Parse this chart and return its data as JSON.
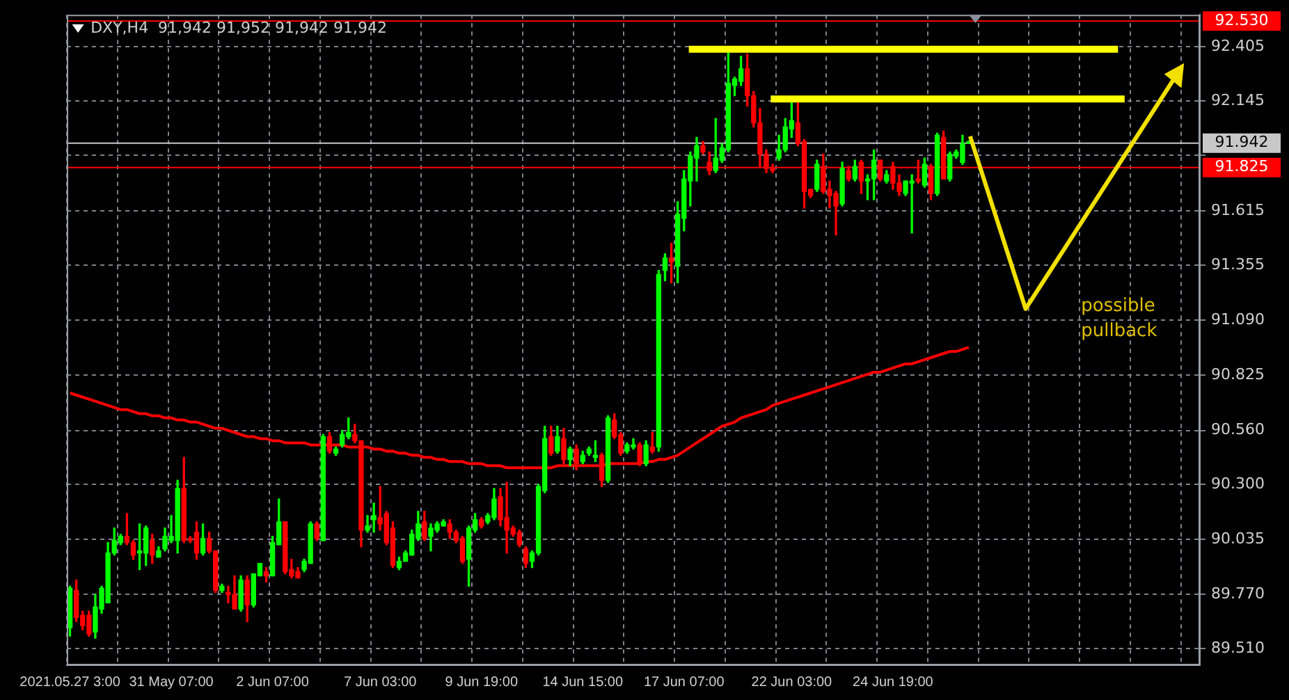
{
  "chart_data": {
    "type": "candlestick",
    "title": "DXY,H4  91,942 91,952 91,942 91,942",
    "categories": [
      "2021.05.27 3:00",
      null,
      null,
      null,
      null,
      null,
      null,
      null,
      null,
      null,
      null,
      null,
      null,
      null,
      null,
      null,
      "31 May 07:00",
      null,
      null,
      null,
      null,
      null,
      null,
      null,
      null,
      null,
      null,
      null,
      null,
      null,
      null,
      null,
      "2 Jun 07:00",
      null,
      null,
      null,
      null,
      null,
      null,
      null,
      null,
      null,
      null,
      null,
      null,
      null,
      null,
      null,
      null,
      "7 Jun 03:00",
      null,
      null,
      null,
      null,
      null,
      null,
      null,
      null,
      null,
      null,
      null,
      null,
      null,
      null,
      null,
      "9 Jun 19:00",
      null,
      null,
      null,
      null,
      null,
      null,
      null,
      null,
      null,
      null,
      null,
      null,
      null,
      null,
      null,
      "14 Jun 15:00",
      null,
      null,
      null,
      null,
      null,
      null,
      null,
      null,
      null,
      null,
      null,
      null,
      null,
      null,
      null,
      "17 Jun 07:00",
      null,
      null,
      null,
      null,
      null,
      null,
      null,
      null,
      null,
      null,
      null,
      null,
      null,
      null,
      null,
      null,
      "22 Jun 03:00",
      null,
      null,
      null,
      null,
      null,
      null,
      null,
      null,
      null,
      null,
      null,
      null,
      null,
      null,
      null,
      "24 Jun 19:00",
      null,
      null,
      null,
      null,
      null,
      null,
      null,
      null,
      null,
      null,
      null,
      null,
      null,
      null,
      null,
      null,
      null,
      null,
      null,
      null,
      null,
      null,
      null,
      null,
      null,
      null,
      null,
      null,
      null,
      null,
      null,
      null,
      null,
      null,
      null,
      null,
      null,
      null,
      null,
      null,
      null,
      null,
      null,
      null,
      null,
      null,
      null,
      null
    ],
    "ohlc": [
      [
        89.61,
        89.81,
        89.57,
        89.8
      ],
      [
        89.79,
        89.84,
        89.64,
        89.66
      ],
      [
        89.67,
        89.69,
        89.6,
        89.62
      ],
      [
        89.67,
        89.69,
        89.57,
        89.58
      ],
      [
        89.59,
        89.77,
        89.56,
        89.71
      ],
      [
        89.7,
        89.81,
        89.68,
        89.8
      ],
      [
        89.73,
        90.02,
        89.73,
        89.97
      ],
      [
        89.97,
        90.09,
        89.96,
        90.03
      ],
      [
        90.02,
        90.06,
        90.01,
        90.05
      ],
      [
        90.05,
        90.16,
        90.01,
        90.02
      ],
      [
        90.02,
        90.03,
        89.94,
        89.96
      ],
      [
        89.97,
        90.11,
        89.89,
        89.98
      ],
      [
        89.97,
        90.1,
        89.91,
        90.09
      ],
      [
        90.03,
        90.06,
        89.92,
        89.96
      ],
      [
        89.95,
        90.0,
        89.95,
        89.98
      ],
      [
        89.99,
        90.09,
        89.98,
        90.05
      ],
      [
        90.03,
        90.15,
        90.02,
        90.05
      ],
      [
        90.03,
        90.32,
        89.97,
        90.28
      ],
      [
        90.28,
        90.43,
        90.02,
        90.03
      ],
      [
        90.04,
        90.05,
        90.02,
        90.03
      ],
      [
        90.07,
        90.12,
        89.94,
        89.97
      ],
      [
        89.97,
        90.11,
        89.96,
        90.04
      ],
      [
        90.04,
        90.07,
        89.97,
        89.98
      ],
      [
        89.98,
        89.98,
        89.78,
        89.79
      ],
      [
        89.79,
        89.82,
        89.78,
        89.81
      ],
      [
        89.78,
        89.81,
        89.73,
        89.77
      ],
      [
        89.77,
        89.86,
        89.7,
        89.7
      ],
      [
        89.7,
        89.86,
        89.69,
        89.84
      ],
      [
        89.84,
        89.86,
        89.64,
        89.72
      ],
      [
        89.72,
        89.87,
        89.71,
        89.87
      ],
      [
        89.86,
        89.92,
        89.86,
        89.92
      ],
      [
        89.88,
        89.9,
        89.83,
        89.86
      ],
      [
        89.86,
        90.05,
        89.86,
        90.02
      ],
      [
        90.01,
        90.23,
        90.01,
        90.12
      ],
      [
        90.12,
        90.12,
        89.87,
        89.88
      ],
      [
        89.89,
        89.94,
        89.85,
        89.86
      ],
      [
        89.88,
        89.9,
        89.85,
        89.85
      ],
      [
        89.89,
        89.94,
        89.88,
        89.93
      ],
      [
        89.92,
        90.12,
        89.92,
        90.11
      ],
      [
        90.11,
        90.12,
        90.03,
        90.04
      ],
      [
        90.03,
        90.54,
        90.03,
        90.53
      ],
      [
        90.53,
        90.55,
        90.45,
        90.46
      ],
      [
        90.45,
        90.48,
        90.44,
        90.47
      ],
      [
        90.49,
        90.56,
        90.48,
        90.54
      ],
      [
        90.53,
        90.62,
        90.52,
        90.55
      ],
      [
        90.54,
        90.59,
        90.5,
        90.51
      ],
      [
        90.51,
        90.51,
        90.0,
        90.08
      ],
      [
        90.08,
        90.15,
        90.07,
        90.1
      ],
      [
        90.13,
        90.21,
        90.07,
        90.15
      ],
      [
        90.14,
        90.29,
        90.08,
        90.11
      ],
      [
        90.16,
        90.17,
        90.01,
        90.02
      ],
      [
        90.09,
        90.12,
        89.9,
        89.91
      ],
      [
        89.9,
        89.95,
        89.89,
        89.93
      ],
      [
        89.93,
        89.98,
        89.93,
        89.97
      ],
      [
        89.96,
        90.08,
        89.96,
        90.06
      ],
      [
        90.04,
        90.17,
        90.03,
        90.11
      ],
      [
        90.12,
        90.17,
        90.03,
        90.04
      ],
      [
        90.05,
        90.11,
        89.98,
        90.09
      ],
      [
        90.08,
        90.12,
        90.07,
        90.11
      ],
      [
        90.1,
        90.13,
        90.1,
        90.12
      ],
      [
        90.11,
        90.13,
        90.04,
        90.07
      ],
      [
        90.07,
        90.08,
        90.02,
        90.03
      ],
      [
        90.04,
        90.05,
        89.92,
        89.93
      ],
      [
        89.94,
        90.1,
        89.81,
        90.09
      ],
      [
        90.08,
        90.16,
        90.07,
        90.13
      ],
      [
        90.13,
        90.14,
        90.09,
        90.1
      ],
      [
        90.12,
        90.16,
        90.11,
        90.15
      ],
      [
        90.14,
        90.28,
        90.13,
        90.23
      ],
      [
        90.24,
        90.28,
        90.1,
        90.13
      ],
      [
        90.14,
        90.31,
        89.97,
        90.08
      ],
      [
        90.09,
        90.1,
        90.05,
        90.06
      ],
      [
        90.07,
        90.08,
        90.0,
        90.01
      ],
      [
        89.99,
        90.0,
        89.9,
        89.92
      ],
      [
        89.93,
        89.98,
        89.9,
        89.97
      ],
      [
        89.97,
        90.3,
        89.96,
        90.29
      ],
      [
        90.27,
        90.58,
        90.26,
        90.52
      ],
      [
        90.53,
        90.58,
        90.44,
        90.45
      ],
      [
        90.46,
        90.58,
        90.45,
        90.53
      ],
      [
        90.52,
        90.57,
        90.4,
        90.42
      ],
      [
        90.42,
        90.48,
        90.39,
        90.47
      ],
      [
        90.47,
        90.49,
        90.37,
        90.4
      ],
      [
        90.41,
        90.46,
        90.4,
        90.44
      ],
      [
        90.45,
        90.48,
        90.44,
        90.47
      ],
      [
        90.43,
        90.51,
        90.41,
        90.44
      ],
      [
        90.44,
        90.45,
        90.29,
        90.32
      ],
      [
        90.32,
        90.63,
        90.31,
        90.62
      ],
      [
        90.61,
        90.64,
        90.52,
        90.53
      ],
      [
        90.54,
        90.55,
        90.44,
        90.45
      ],
      [
        90.46,
        90.5,
        90.45,
        90.49
      ],
      [
        90.48,
        90.52,
        90.47,
        90.49
      ],
      [
        90.49,
        90.5,
        90.39,
        90.4
      ],
      [
        90.4,
        90.51,
        90.39,
        90.49
      ],
      [
        90.48,
        90.55,
        90.45,
        90.46
      ],
      [
        90.48,
        91.33,
        90.46,
        91.31
      ],
      [
        91.33,
        91.41,
        91.28,
        91.39
      ],
      [
        91.39,
        91.46,
        91.27,
        91.37
      ],
      [
        91.35,
        91.66,
        91.27,
        91.6
      ],
      [
        91.58,
        91.81,
        91.52,
        91.77
      ],
      [
        91.76,
        91.9,
        91.64,
        91.88
      ],
      [
        91.87,
        91.97,
        91.76,
        91.93
      ],
      [
        91.93,
        91.95,
        91.89,
        91.9
      ],
      [
        91.85,
        91.9,
        91.79,
        91.81
      ],
      [
        91.81,
        92.06,
        91.8,
        91.87
      ],
      [
        91.86,
        91.94,
        91.85,
        91.92
      ],
      [
        91.91,
        92.38,
        91.9,
        92.23
      ],
      [
        92.22,
        92.26,
        92.17,
        92.25
      ],
      [
        92.24,
        92.36,
        92.22,
        92.3
      ],
      [
        92.3,
        92.37,
        92.12,
        92.17
      ],
      [
        92.17,
        92.19,
        92.02,
        92.04
      ],
      [
        92.04,
        92.11,
        91.83,
        91.89
      ],
      [
        91.89,
        91.91,
        91.8,
        91.82
      ],
      [
        91.82,
        91.84,
        91.8,
        91.81
      ],
      [
        91.87,
        91.98,
        91.86,
        91.91
      ],
      [
        91.91,
        92.06,
        91.9,
        92.02
      ],
      [
        92.01,
        92.15,
        91.97,
        92.05
      ],
      [
        92.04,
        92.15,
        91.93,
        91.94
      ],
      [
        91.95,
        91.96,
        91.63,
        91.71
      ],
      [
        91.72,
        91.72,
        91.68,
        91.69
      ],
      [
        91.72,
        91.86,
        91.71,
        91.84
      ],
      [
        91.83,
        91.89,
        91.7,
        91.71
      ],
      [
        91.72,
        91.76,
        91.63,
        91.69
      ],
      [
        91.7,
        91.71,
        91.5,
        91.64
      ],
      [
        91.65,
        91.85,
        91.64,
        91.82
      ],
      [
        91.81,
        91.83,
        91.76,
        91.77
      ],
      [
        91.77,
        91.86,
        91.76,
        91.83
      ],
      [
        91.85,
        91.86,
        91.7,
        91.76
      ],
      [
        91.76,
        91.79,
        91.67,
        91.77
      ],
      [
        91.77,
        91.91,
        91.67,
        91.86
      ],
      [
        91.86,
        91.86,
        91.76,
        91.77
      ],
      [
        91.76,
        91.81,
        91.75,
        91.79
      ],
      [
        91.83,
        91.85,
        91.72,
        91.75
      ],
      [
        91.75,
        91.79,
        91.69,
        91.71
      ],
      [
        91.7,
        91.76,
        91.69,
        91.76
      ],
      [
        91.75,
        91.79,
        91.51,
        91.76
      ],
      [
        91.77,
        91.86,
        91.75,
        91.76
      ],
      [
        91.74,
        91.87,
        91.73,
        91.84
      ],
      [
        91.83,
        91.84,
        91.67,
        91.7
      ],
      [
        91.7,
        91.99,
        91.69,
        91.98
      ],
      [
        91.97,
        92.0,
        91.77,
        91.77
      ],
      [
        91.77,
        91.9,
        91.76,
        91.89
      ],
      [
        91.88,
        91.91,
        91.87,
        91.9
      ],
      [
        91.85,
        91.98,
        91.84,
        91.94
      ],
      [
        91.942,
        91.952,
        91.942,
        91.942
      ],
      null,
      null,
      null,
      null,
      null,
      null,
      null,
      null,
      null,
      null,
      null,
      null,
      null,
      null,
      null,
      null,
      null,
      null,
      null,
      null,
      null,
      null,
      null,
      null,
      null,
      null,
      null,
      null,
      null,
      null,
      null,
      null,
      null,
      null,
      null,
      null
    ],
    "colors": [
      "#00ff00",
      "#ff0000",
      "#ff0000",
      "#ff0000",
      "#00ff00",
      "#00ff00",
      "#00ff00",
      "#00ff00",
      "#00ff00",
      "#ff0000",
      "#ff0000",
      "#00ff00",
      "#00ff00",
      "#ff0000",
      "#00ff00",
      "#00ff00",
      "#00ff00",
      "#00ff00",
      "#ff0000",
      "#ff0000",
      "#ff0000",
      "#00ff00",
      "#ff0000",
      "#ff0000",
      "#00ff00",
      "#ff0000",
      "#ff0000",
      "#00ff00",
      "#ff0000",
      "#00ff00",
      "#00ff00",
      "#ff0000",
      "#00ff00",
      "#00ff00",
      "#ff0000",
      "#ff0000",
      "#ff0000",
      "#00ff00",
      "#00ff00",
      "#ff0000",
      "#00ff00",
      "#ff0000",
      "#00ff00",
      "#00ff00",
      "#00ff00",
      "#ff0000",
      "#ff0000",
      "#00ff00",
      "#00ff00",
      "#ff0000",
      "#ff0000",
      "#ff0000",
      "#00ff00",
      "#00ff00",
      "#00ff00",
      "#00ff00",
      "#ff0000",
      "#00ff00",
      "#00ff00",
      "#00ff00",
      "#ff0000",
      "#ff0000",
      "#ff0000",
      "#00ff00",
      "#00ff00",
      "#ff0000",
      "#00ff00",
      "#00ff00",
      "#ff0000",
      "#ff0000",
      "#ff0000",
      "#ff0000",
      "#ff0000",
      "#00ff00",
      "#00ff00",
      "#00ff00",
      "#ff0000",
      "#00ff00",
      "#ff0000",
      "#00ff00",
      "#ff0000",
      "#00ff00",
      "#00ff00",
      "#00ff00",
      "#ff0000",
      "#00ff00",
      "#ff0000",
      "#ff0000",
      "#00ff00",
      "#00ff00",
      "#ff0000",
      "#00ff00",
      "#ff0000",
      "#00ff00",
      "#00ff00",
      "#ff0000",
      "#00ff00",
      "#00ff00",
      "#00ff00",
      "#00ff00",
      "#ff0000",
      "#ff0000",
      "#00ff00",
      "#00ff00",
      "#00ff00",
      "#00ff00",
      "#00ff00",
      "#ff0000",
      "#ff0000",
      "#ff0000",
      "#ff0000",
      "#ff0000",
      "#00ff00",
      "#00ff00",
      "#00ff00",
      "#ff0000",
      "#ff0000",
      "#ff0000",
      "#00ff00",
      "#ff0000",
      "#ff0000",
      "#ff0000",
      "#00ff00",
      "#ff0000",
      "#00ff00",
      "#ff0000",
      "#00ff00",
      "#00ff00",
      "#ff0000",
      "#00ff00",
      "#ff0000",
      "#ff0000",
      "#00ff00",
      "#00ff00",
      "#ff0000",
      "#00ff00",
      "#ff0000",
      "#00ff00",
      "#ff0000",
      "#00ff00",
      "#00ff00",
      "#00ff00",
      "#00ff00",
      null,
      null,
      null,
      null,
      null,
      null,
      null,
      null,
      null,
      null,
      null,
      null,
      null,
      null,
      null,
      null,
      null,
      null,
      null,
      null,
      null,
      null,
      null,
      null,
      null,
      null,
      null,
      null,
      null,
      null,
      null,
      null,
      null,
      null,
      null,
      null
    ],
    "series": [
      {
        "type": "line",
        "color": "#ff0000",
        "values": [
          90.74,
          90.73,
          90.72,
          90.71,
          90.7,
          90.69,
          90.68,
          90.67,
          90.66,
          90.66,
          90.65,
          90.64,
          90.64,
          90.63,
          90.63,
          90.62,
          90.62,
          90.61,
          90.61,
          90.6,
          90.6,
          90.59,
          90.58,
          90.57,
          90.57,
          90.56,
          90.55,
          90.54,
          90.53,
          90.53,
          90.52,
          90.52,
          90.51,
          90.51,
          90.5,
          90.5,
          90.5,
          90.5,
          90.49,
          90.49,
          90.49,
          90.49,
          90.49,
          90.49,
          90.48,
          90.48,
          90.48,
          90.48,
          90.47,
          90.47,
          90.46,
          90.46,
          90.45,
          90.45,
          90.44,
          90.44,
          90.43,
          90.43,
          90.42,
          90.42,
          90.41,
          90.41,
          90.41,
          90.4,
          90.4,
          90.4,
          90.39,
          90.39,
          90.39,
          90.38,
          90.38,
          90.38,
          90.38,
          90.38,
          90.38,
          90.38,
          90.38,
          90.39,
          90.39,
          90.39,
          90.39,
          90.39,
          90.39,
          90.39,
          90.39,
          90.4,
          90.4,
          90.4,
          90.4,
          90.4,
          90.4,
          90.41,
          90.41,
          90.42,
          90.42,
          90.43,
          90.44,
          90.46,
          90.48,
          90.5,
          90.52,
          90.54,
          90.56,
          90.58,
          90.59,
          90.6,
          90.62,
          90.63,
          90.64,
          90.65,
          90.66,
          90.68,
          90.69,
          90.7,
          90.71,
          90.72,
          90.73,
          90.74,
          90.75,
          90.76,
          90.77,
          90.78,
          90.79,
          90.8,
          90.81,
          90.82,
          90.83,
          90.84,
          90.84,
          90.85,
          90.86,
          90.87,
          90.88,
          90.88,
          90.89,
          90.9,
          90.91,
          90.92,
          90.93,
          90.94,
          90.94,
          90.95,
          90.96,
          null,
          null,
          null,
          null,
          null,
          null,
          null,
          null,
          null,
          null,
          null,
          null,
          null,
          null,
          null,
          null,
          null,
          null,
          null,
          null,
          null,
          null,
          null,
          null,
          null,
          null,
          null,
          null,
          null,
          null,
          null,
          null,
          null,
          null,
          null,
          null
        ]
      }
    ],
    "ylim": [
      89.43,
      92.56
    ],
    "yticks": [
      {
        "value": 89.51,
        "label": "89.510"
      },
      {
        "value": 89.77,
        "label": "89.770"
      },
      90.035,
      {
        "value": 90.3,
        "label": "90.300"
      },
      {
        "value": 90.56,
        "label": "90.560"
      },
      90.825,
      {
        "value": 91.09,
        "label": "91.090"
      },
      91.355,
      91.615,
      {
        "value": 91.885,
        "label": null
      },
      92.145,
      92.405
    ],
    "ref_lines": [
      {
        "axis": "y",
        "value": 92.53,
        "label": "92.530",
        "color": "#ff0000"
      },
      {
        "axis": "y",
        "value": 91.942,
        "label": "91.942",
        "color": "#c8c8c8"
      },
      {
        "axis": "y",
        "value": 91.825,
        "label": "91.825",
        "color": "#ff0000"
      }
    ],
    "annotations": [
      "possible pullback"
    ],
    "grid": true
  }
}
